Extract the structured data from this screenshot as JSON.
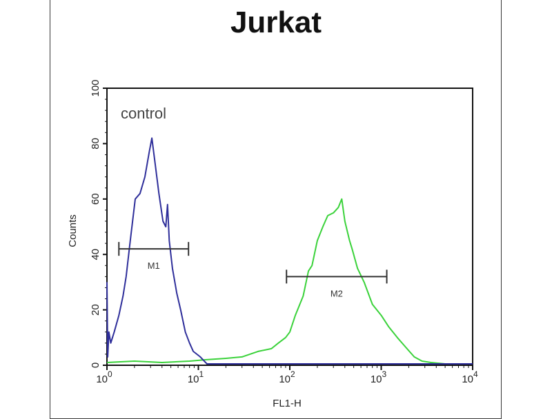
{
  "chart_data": {
    "type": "line",
    "title": "Jurkat",
    "xlabel": "FL1-H",
    "ylabel": "Counts",
    "xscale": "log",
    "xlim": [
      1,
      10000
    ],
    "ylim": [
      0,
      100
    ],
    "xticks": [
      {
        "base": "10",
        "exp": "0",
        "value": 1
      },
      {
        "base": "10",
        "exp": "1",
        "value": 10
      },
      {
        "base": "10",
        "exp": "2",
        "value": 100
      },
      {
        "base": "10",
        "exp": "3",
        "value": 1000
      },
      {
        "base": "10",
        "exp": "4",
        "value": 10000
      }
    ],
    "yticks": [
      "0",
      "20",
      "40",
      "60",
      "80",
      "100"
    ],
    "annotation": "control",
    "series": [
      {
        "color": "#2e2e9a",
        "x": [
          1.0,
          1.02,
          1.05,
          1.1,
          1.2,
          1.35,
          1.5,
          1.62,
          1.8,
          2.04,
          2.3,
          2.6,
          2.9,
          3.1,
          3.3,
          3.7,
          4.1,
          4.4,
          4.6,
          4.8,
          5.2,
          5.8,
          6.4,
          7.2,
          8.0,
          8.8,
          10.5,
          12.4,
          20,
          50,
          100,
          300,
          1000,
          3000,
          10000
        ],
        "y": [
          30,
          3,
          12,
          8,
          12,
          18,
          25,
          32,
          45,
          60,
          62,
          68,
          77,
          82,
          75,
          62,
          52,
          50,
          58,
          45,
          35,
          26,
          20,
          12,
          8,
          5,
          3,
          0.5,
          0.5,
          0.5,
          0.5,
          0.5,
          0.5,
          0.5,
          0.5
        ]
      },
      {
        "color": "#3ad23a",
        "x": [
          1.0,
          2,
          4,
          8,
          12,
          20,
          30,
          45,
          63,
          75,
          90,
          100,
          115,
          140,
          160,
          175,
          200,
          230,
          260,
          300,
          340,
          370,
          400,
          450,
          480,
          550,
          650,
          800,
          1000,
          1200,
          1500,
          1800,
          2300,
          2800,
          3500,
          5000,
          10000
        ],
        "y": [
          1,
          1.5,
          1,
          1.5,
          2,
          2.5,
          3,
          5,
          6,
          8,
          10,
          12,
          18,
          25,
          34,
          36,
          45,
          50,
          54,
          55,
          57,
          60,
          52,
          45,
          42,
          35,
          30,
          22,
          18,
          14,
          10,
          7,
          3,
          1.5,
          1,
          0.5,
          0.5
        ]
      }
    ],
    "markers": [
      {
        "label": "M1",
        "x": [
          1.35,
          7.8
        ],
        "y": 42
      },
      {
        "label": "M2",
        "x": [
          92,
          1150
        ],
        "y": 32
      }
    ]
  }
}
